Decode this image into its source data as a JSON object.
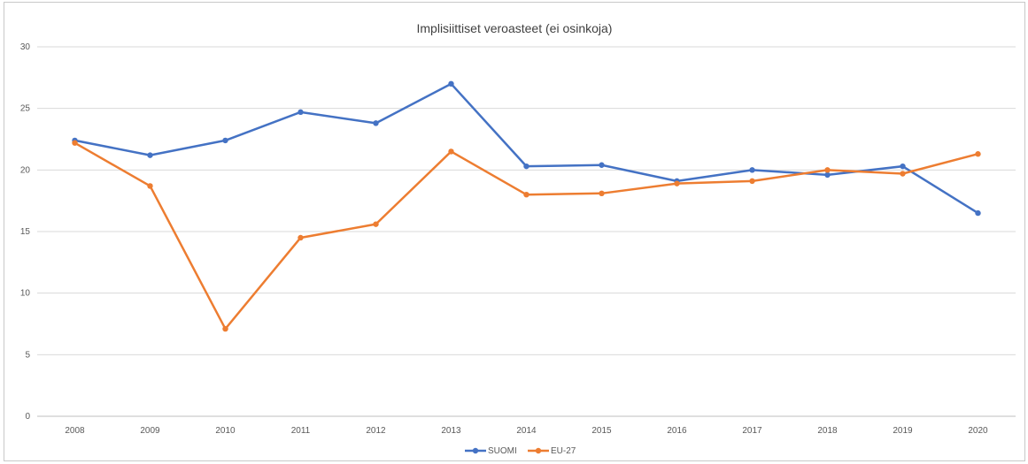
{
  "chart_data": {
    "type": "line",
    "title": "Implisiittiset veroasteet (ei osinkoja)",
    "xlabel": "",
    "ylabel": "",
    "categories": [
      "2008",
      "2009",
      "2010",
      "2011",
      "2012",
      "2013",
      "2014",
      "2015",
      "2016",
      "2017",
      "2018",
      "2019",
      "2020"
    ],
    "ylim": [
      0,
      30
    ],
    "yticks": [
      0,
      5,
      10,
      15,
      20,
      25,
      30
    ],
    "grid": true,
    "legend_position": "bottom",
    "series": [
      {
        "name": "SUOMI",
        "color": "#4472c4",
        "values": [
          22.4,
          21.2,
          22.4,
          24.7,
          23.8,
          27.0,
          20.3,
          20.4,
          19.1,
          20.0,
          19.6,
          20.3,
          16.5
        ]
      },
      {
        "name": "EU-27",
        "color": "#ed7d31",
        "values": [
          22.2,
          18.7,
          7.1,
          14.5,
          15.6,
          21.5,
          18.0,
          18.1,
          18.9,
          19.1,
          20.0,
          19.7,
          21.3
        ]
      }
    ]
  }
}
